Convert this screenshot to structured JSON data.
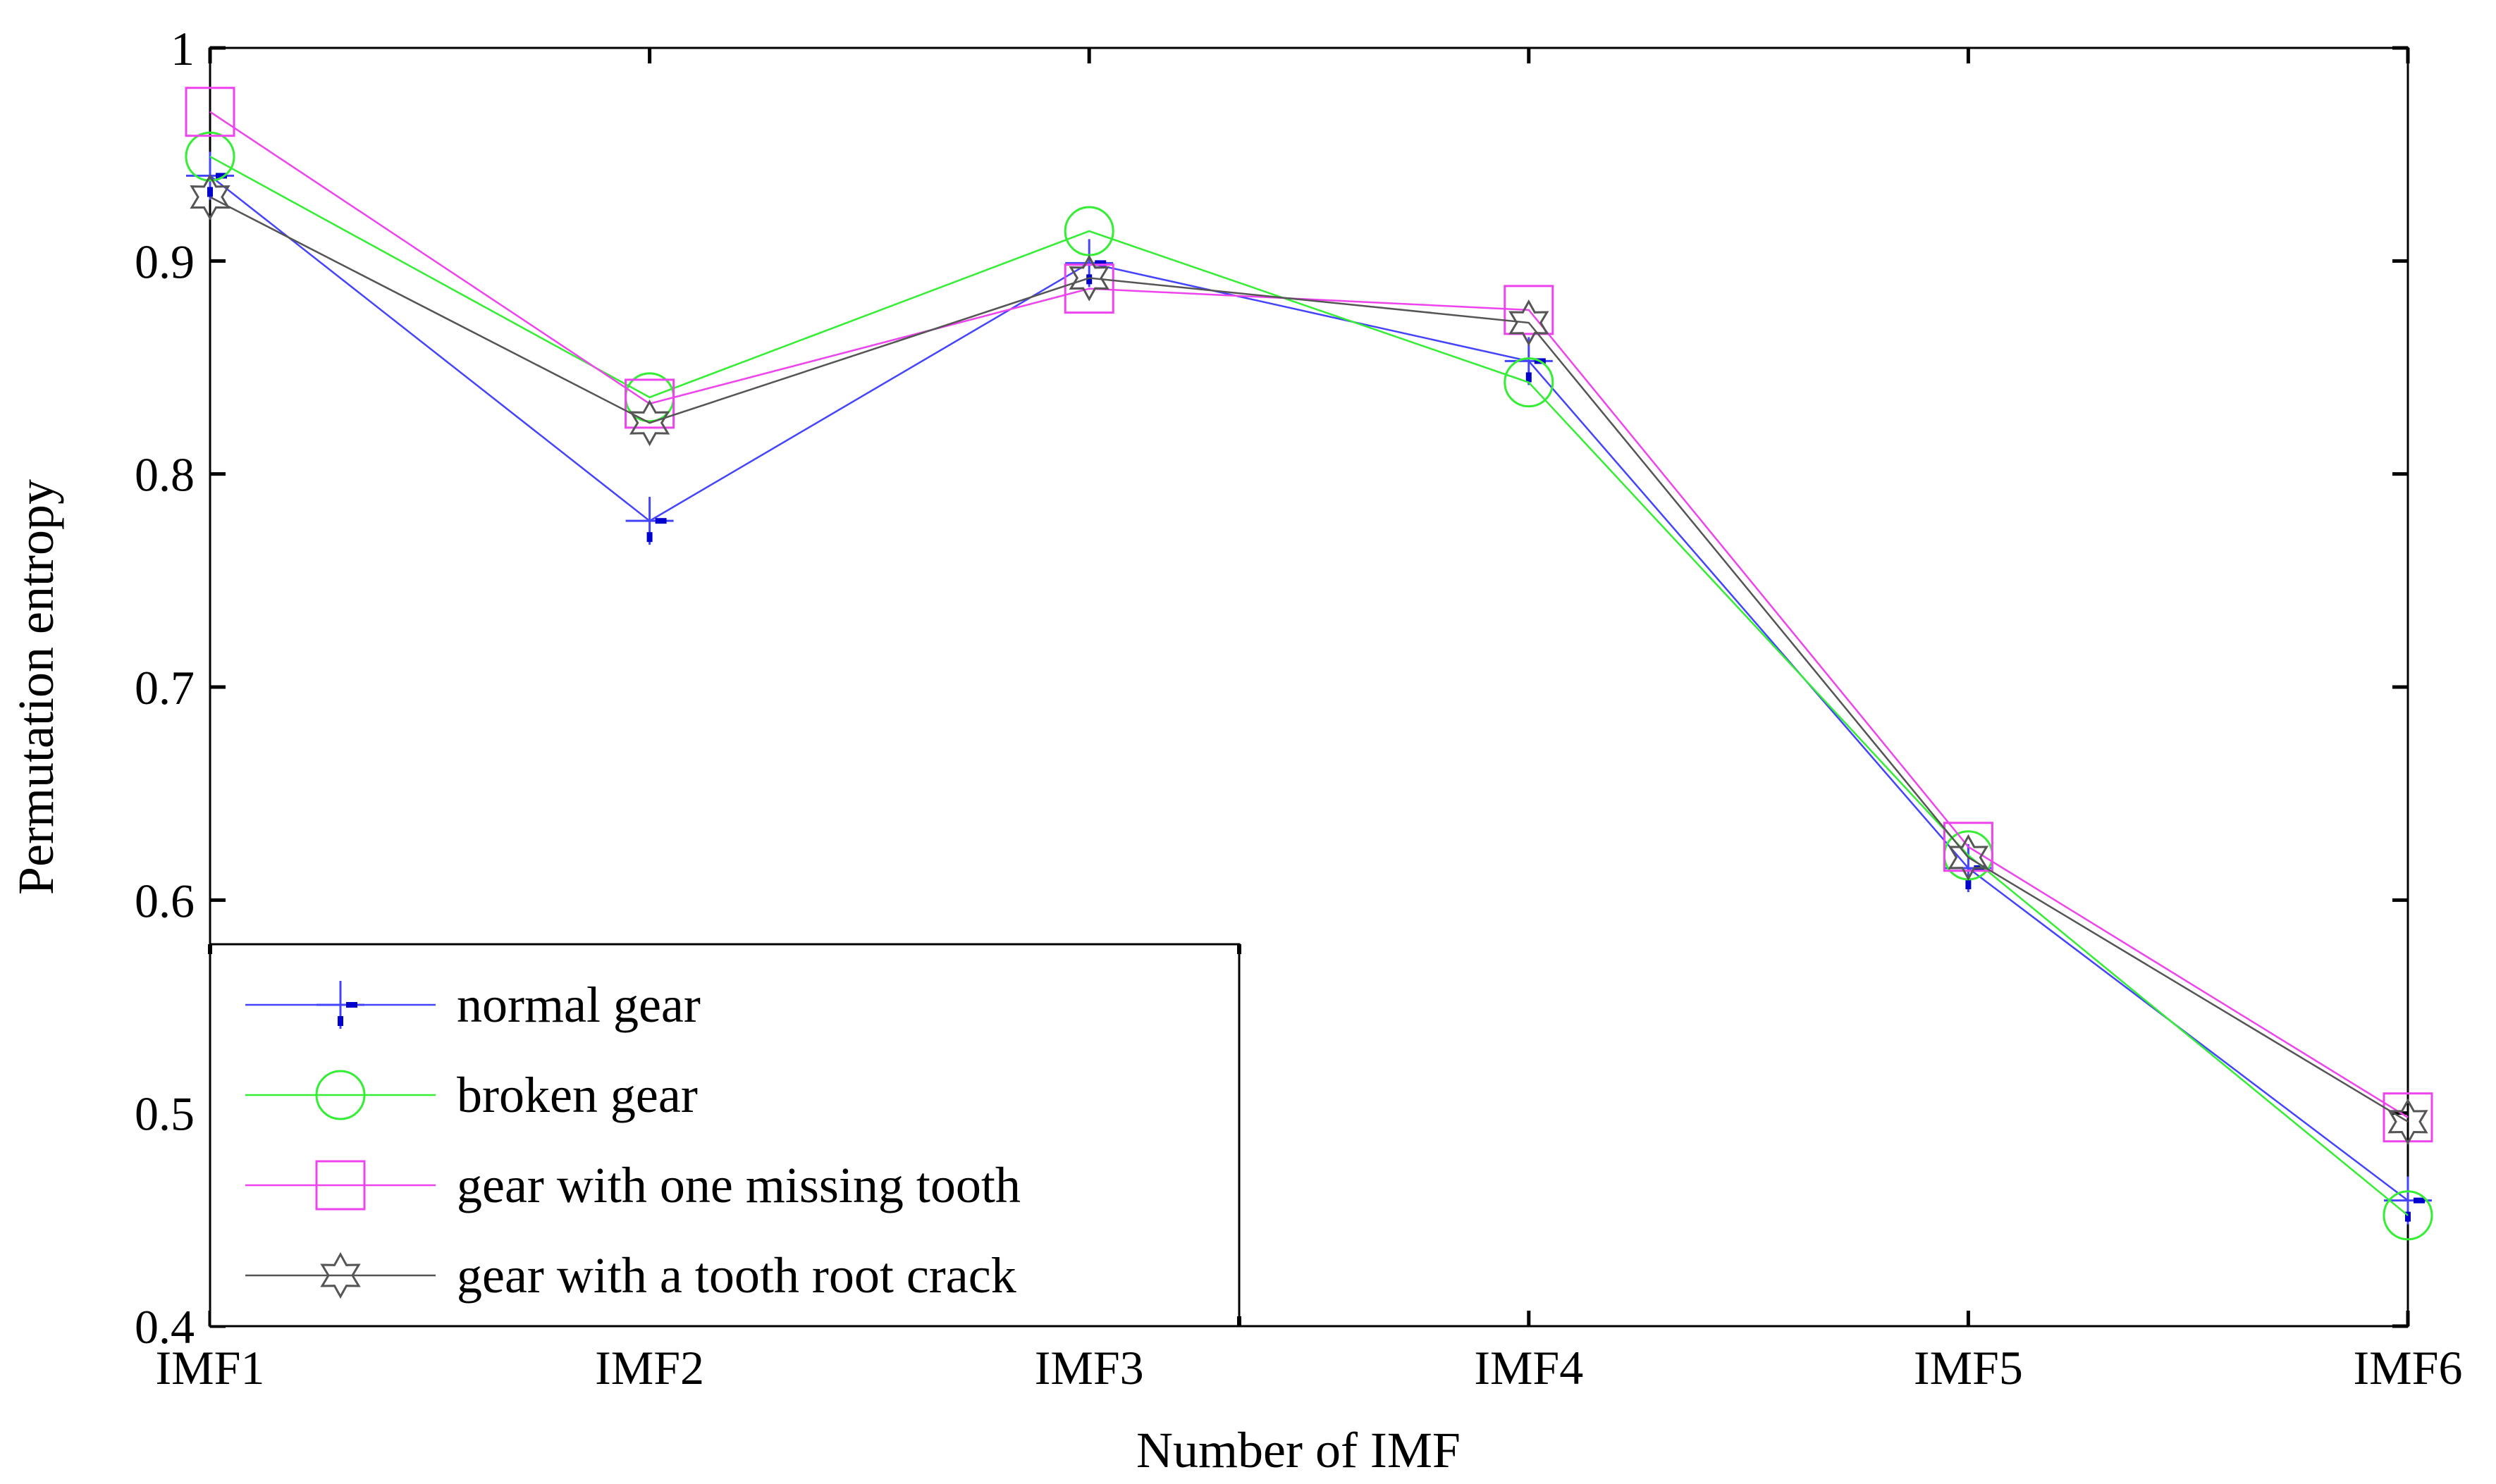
{
  "chart_data": {
    "type": "line",
    "title": "",
    "xlabel": "Number of IMF",
    "ylabel": "Permutation entropy",
    "categories": [
      "IMF1",
      "IMF2",
      "IMF3",
      "IMF4",
      "IMF5",
      "IMF6"
    ],
    "ylim": [
      0.4,
      1.0
    ],
    "yticks": [
      "0.4",
      "0.5",
      "0.6",
      "0.7",
      "0.8",
      "0.9",
      "1"
    ],
    "grid": false,
    "legend_position": "bottom-left",
    "series": [
      {
        "name": "normal gear",
        "color": "#4444ff",
        "marker": "plus-icon",
        "values": [
          0.94,
          0.778,
          0.899,
          0.853,
          0.615,
          0.459
        ]
      },
      {
        "name": "broken gear",
        "color": "#33ee33",
        "marker": "circle-icon",
        "values": [
          0.949,
          0.836,
          0.914,
          0.843,
          0.621,
          0.452
        ]
      },
      {
        "name": "gear with one missing tooth",
        "color": "#ee44ee",
        "marker": "square-icon",
        "values": [
          0.97,
          0.833,
          0.887,
          0.877,
          0.625,
          0.498
        ]
      },
      {
        "name": "gear with a tooth root crack",
        "color": "#555555",
        "marker": "hexagram-icon",
        "values": [
          0.93,
          0.824,
          0.892,
          0.871,
          0.62,
          0.496
        ]
      }
    ]
  }
}
